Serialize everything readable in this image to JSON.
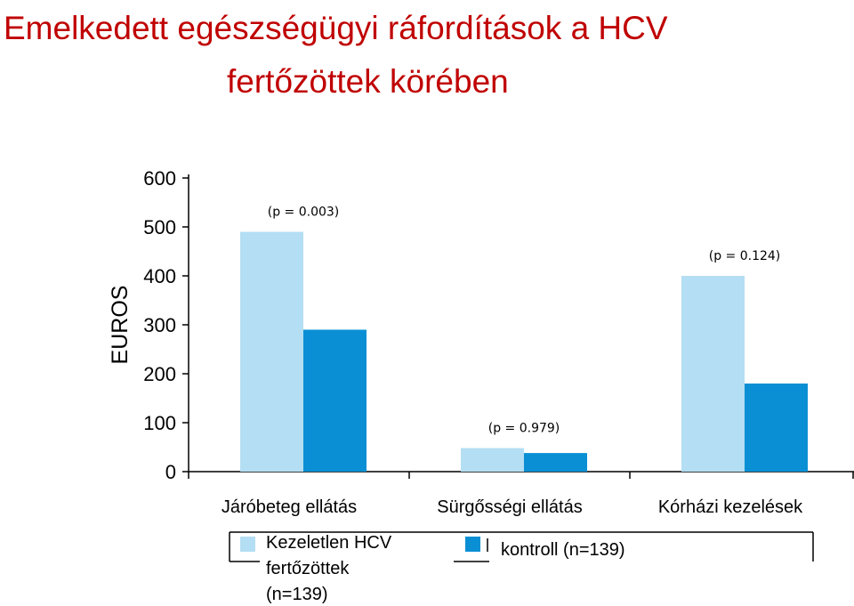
{
  "title": {
    "line1": "Emelkedett egészségügyi ráfordítások a HCV",
    "line2": "fertőzöttek körében"
  },
  "chart_data": {
    "type": "bar",
    "ylabel": "EUROS",
    "ylim": [
      0,
      600
    ],
    "yticks": [
      0,
      100,
      200,
      300,
      400,
      500,
      600
    ],
    "categories": [
      "Járóbeteg ellátás",
      "Sürgősségi ellátás",
      "Kórházi kezelések"
    ],
    "series": [
      {
        "name": "Kezeletlen HCV fertőzöttek (n=139)",
        "values": [
          490,
          48,
          400
        ],
        "color": "#b4def3"
      },
      {
        "name": "kontroll (n=139)",
        "values": [
          290,
          38,
          180
        ],
        "color": "#0a8fd4"
      }
    ],
    "annotations": [
      "(p = 0.003)",
      "(p = 0.979)",
      "(p = 0.124)"
    ],
    "legend": {
      "placement": "bottom",
      "series1_lines": [
        "Kezeletlen HCV",
        "fertőzöttek",
        "(n=139)"
      ],
      "series2_lines": [
        "kontroll (n=139)"
      ]
    }
  }
}
